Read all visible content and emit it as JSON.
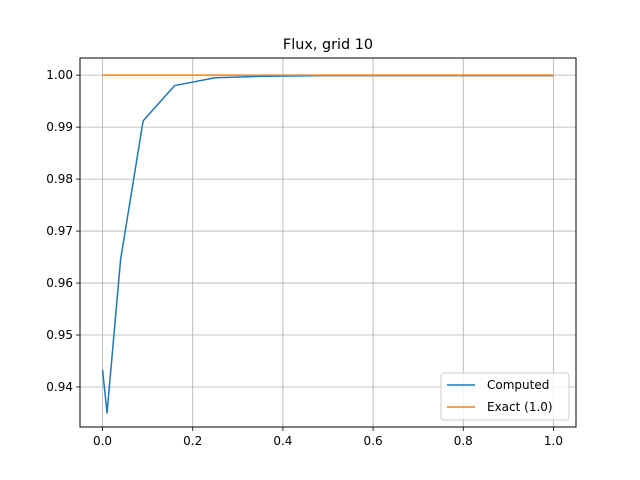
{
  "chart_data": {
    "type": "line",
    "title": "Flux, grid 10",
    "xlabel": "",
    "ylabel": "",
    "xlim": [
      -0.05,
      1.05
    ],
    "ylim": [
      0.9323,
      1.0033
    ],
    "grid": true,
    "legend_position": "lower-right",
    "xticks": [
      {
        "value": 0.0,
        "label": "0.0"
      },
      {
        "value": 0.2,
        "label": "0.2"
      },
      {
        "value": 0.4,
        "label": "0.4"
      },
      {
        "value": 0.6,
        "label": "0.6"
      },
      {
        "value": 0.8,
        "label": "0.8"
      },
      {
        "value": 1.0,
        "label": "1.0"
      }
    ],
    "yticks": [
      {
        "value": 0.94,
        "label": "0.94"
      },
      {
        "value": 0.95,
        "label": "0.95"
      },
      {
        "value": 0.96,
        "label": "0.96"
      },
      {
        "value": 0.97,
        "label": "0.97"
      },
      {
        "value": 0.98,
        "label": "0.98"
      },
      {
        "value": 0.99,
        "label": "0.99"
      },
      {
        "value": 1.0,
        "label": "1.00"
      }
    ],
    "series": [
      {
        "name": "Computed",
        "color": "#1f77b4",
        "x": [
          0.0,
          0.01,
          0.04,
          0.09,
          0.16,
          0.25,
          0.36,
          0.49,
          0.64,
          0.81,
          1.0
        ],
        "y": [
          0.9433,
          0.935,
          0.9645,
          0.9912,
          0.998,
          0.9995,
          0.9998,
          0.9999,
          0.9999,
          0.9999,
          0.9999
        ]
      },
      {
        "name": "Exact (1.0)",
        "color": "#ff7f0e",
        "x": [
          0.0,
          1.0
        ],
        "y": [
          1.0,
          1.0
        ]
      }
    ]
  }
}
